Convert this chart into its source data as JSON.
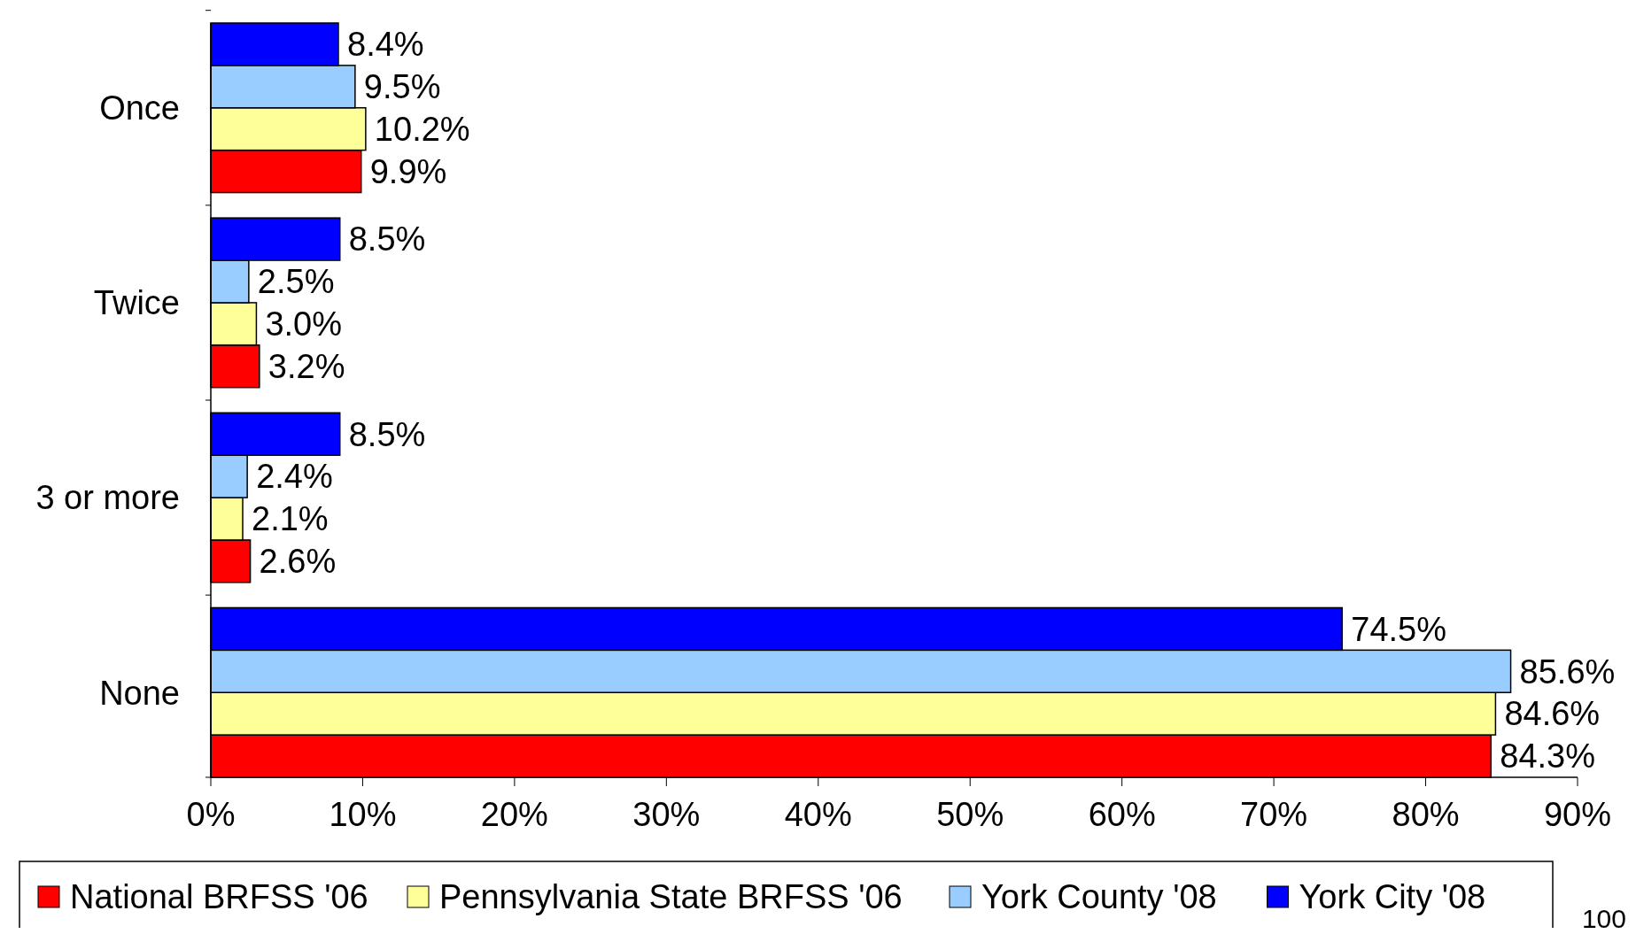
{
  "chart_data": {
    "type": "bar",
    "orientation": "horizontal",
    "categories": [
      "Once",
      "Twice",
      "3 or more",
      "None"
    ],
    "series": [
      {
        "name": "National BRFSS '06",
        "color": "#ff0000",
        "values": [
          9.9,
          3.2,
          2.6,
          84.3
        ],
        "value_labels": [
          "9.9%",
          "3.2%",
          "2.6%",
          "84.3%"
        ]
      },
      {
        "name": "Pennsylvania State BRFSS '06",
        "color": "#ffff99",
        "values": [
          10.2,
          3.0,
          2.1,
          84.6
        ],
        "value_labels": [
          "10.2%",
          "3.0%",
          "2.1%",
          "84.6%"
        ]
      },
      {
        "name": "York County '08",
        "color": "#99ccff",
        "values": [
          9.5,
          2.5,
          2.4,
          85.6
        ],
        "value_labels": [
          "9.5%",
          "2.5%",
          "2.4%",
          "85.6%"
        ]
      },
      {
        "name": "York City '08",
        "color": "#0000ff",
        "values": [
          8.4,
          8.5,
          8.5,
          74.5
        ],
        "value_labels": [
          "8.4%",
          "8.5%",
          "8.5%",
          "74.5%"
        ]
      }
    ],
    "xlim": [
      0,
      90
    ],
    "xticks": [
      {
        "value": 0,
        "label": "0%"
      },
      {
        "value": 10,
        "label": "10%"
      },
      {
        "value": 20,
        "label": "20%"
      },
      {
        "value": 30,
        "label": "30%"
      },
      {
        "value": 40,
        "label": "40%"
      },
      {
        "value": 50,
        "label": "50%"
      },
      {
        "value": 60,
        "label": "60%"
      },
      {
        "value": 70,
        "label": "70%"
      },
      {
        "value": 80,
        "label": "80%"
      },
      {
        "value": 90,
        "label": "90%"
      }
    ],
    "grid": false,
    "legend": "bottom",
    "annotations": [
      "100"
    ]
  }
}
